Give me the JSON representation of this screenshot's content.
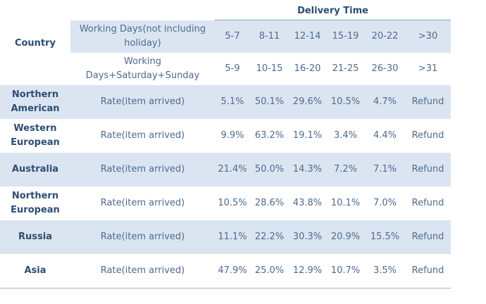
{
  "header": {
    "country": "Country",
    "title": "Delivery Time"
  },
  "ranges": [
    {
      "label": "Working Days(not including holiday)",
      "values": [
        "5-7",
        "8-11",
        "12-14",
        "15-19",
        "20-22",
        ">30"
      ]
    },
    {
      "label": "Working Days+Saturday+Sunday",
      "values": [
        "5-9",
        "10-15",
        "16-20",
        "21-25",
        "26-30",
        ">31"
      ]
    }
  ],
  "rows": [
    {
      "country": "Northern American",
      "metric": "Rate(item arrived)",
      "values": [
        "5.1%",
        "50.1%",
        "29.6%",
        "10.5%",
        "4.7%",
        "Refund"
      ]
    },
    {
      "country": "Western European",
      "metric": "Rate(item arrived)",
      "values": [
        "9.9%",
        "63.2%",
        "19.1%",
        "3.4%",
        "4.4%",
        "Refund"
      ]
    },
    {
      "country": "Australia",
      "metric": "Rate(item arrived)",
      "values": [
        "21.4%",
        "50.0%",
        "14.3%",
        "7.2%",
        "7.1%",
        "Refund"
      ]
    },
    {
      "country": "Northern European",
      "metric": "Rate(item arrived)",
      "values": [
        "10.5%",
        "28.6%",
        "43.8%",
        "10.1%",
        "7.0%",
        "Refund"
      ]
    },
    {
      "country": "Russia",
      "metric": "Rate(item arrived)",
      "values": [
        "11.1%",
        "22.2%",
        "30.3%",
        "20.9%",
        "15.5%",
        "Refund"
      ]
    },
    {
      "country": "Asia",
      "metric": "Rate(item arrived)",
      "values": [
        "47.9%",
        "25.0%",
        "12.9%",
        "10.7%",
        "3.5%",
        "Refund"
      ]
    }
  ]
}
